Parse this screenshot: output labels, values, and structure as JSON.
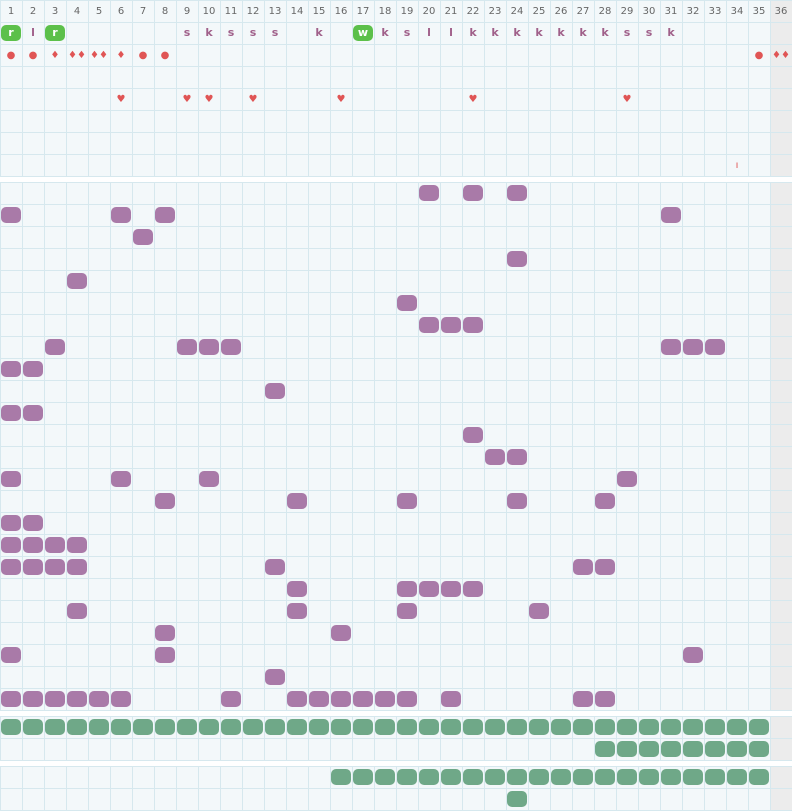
{
  "header": {
    "columns": [
      "1",
      "2",
      "3",
      "4",
      "5",
      "6",
      "7",
      "8",
      "9",
      "10",
      "11",
      "12",
      "13",
      "14",
      "15",
      "16",
      "17",
      "18",
      "19",
      "20",
      "21",
      "22",
      "23",
      "24",
      "25",
      "26",
      "27",
      "28",
      "29",
      "30",
      "31",
      "32",
      "33",
      "34",
      "35",
      "36"
    ]
  },
  "letters_row": [
    {
      "col": 1,
      "text": "r",
      "badge": true
    },
    {
      "col": 2,
      "text": "l"
    },
    {
      "col": 3,
      "text": "r",
      "badge": true
    },
    {
      "col": 9,
      "text": "s"
    },
    {
      "col": 10,
      "text": "k"
    },
    {
      "col": 11,
      "text": "s"
    },
    {
      "col": 12,
      "text": "s"
    },
    {
      "col": 13,
      "text": "s"
    },
    {
      "col": 15,
      "text": "k"
    },
    {
      "col": 17,
      "text": "w",
      "badge": true
    },
    {
      "col": 18,
      "text": "k"
    },
    {
      "col": 19,
      "text": "s"
    },
    {
      "col": 20,
      "text": "l"
    },
    {
      "col": 21,
      "text": "l"
    },
    {
      "col": 22,
      "text": "k"
    },
    {
      "col": 23,
      "text": "k"
    },
    {
      "col": 24,
      "text": "k"
    },
    {
      "col": 25,
      "text": "k"
    },
    {
      "col": 26,
      "text": "k"
    },
    {
      "col": 27,
      "text": "k"
    },
    {
      "col": 28,
      "text": "k"
    },
    {
      "col": 29,
      "text": "s"
    },
    {
      "col": 30,
      "text": "s"
    },
    {
      "col": 31,
      "text": "k"
    }
  ],
  "icons": [
    {
      "row": 1,
      "col": 1,
      "text": "●"
    },
    {
      "row": 1,
      "col": 2,
      "text": "●"
    },
    {
      "row": 1,
      "col": 3,
      "text": "♦"
    },
    {
      "row": 1,
      "col": 4,
      "text": "♦♦"
    },
    {
      "row": 1,
      "col": 5,
      "text": "♦♦"
    },
    {
      "row": 1,
      "col": 6,
      "text": "♦"
    },
    {
      "row": 1,
      "col": 7,
      "text": "●"
    },
    {
      "row": 1,
      "col": 8,
      "text": "●"
    },
    {
      "row": 1,
      "col": 35,
      "text": "●"
    },
    {
      "row": 1,
      "col": 36,
      "text": "♦♦"
    },
    {
      "row": 3,
      "col": 6,
      "text": "♥"
    },
    {
      "row": 3,
      "col": 9,
      "text": "♥"
    },
    {
      "row": 3,
      "col": 10,
      "text": "♥"
    },
    {
      "row": 3,
      "col": 12,
      "text": "♥"
    },
    {
      "row": 3,
      "col": 16,
      "text": "♥"
    },
    {
      "row": 3,
      "col": 22,
      "text": "♥"
    },
    {
      "row": 3,
      "col": 29,
      "text": "♥"
    },
    {
      "row": 6,
      "col": 34,
      "text": "ı"
    }
  ],
  "main_grid": [
    [
      20,
      22,
      24
    ],
    [
      1,
      6,
      8,
      31
    ],
    [
      7
    ],
    [
      24
    ],
    [
      4
    ],
    [
      19
    ],
    [
      20,
      21,
      22
    ],
    [
      3,
      9,
      10,
      11,
      31,
      32,
      33
    ],
    [
      1,
      2
    ],
    [
      13
    ],
    [
      1,
      2
    ],
    [
      22
    ],
    [
      23,
      24
    ],
    [
      1,
      6,
      10,
      29
    ],
    [
      8,
      14,
      19,
      24,
      28
    ],
    [
      1,
      2
    ],
    [
      1,
      2,
      3,
      4
    ],
    [
      1,
      2,
      3,
      4,
      13,
      27,
      28
    ],
    [
      14,
      19,
      20,
      21,
      22
    ],
    [
      4,
      14,
      19,
      25
    ],
    [
      8,
      16
    ],
    [
      1,
      8,
      32
    ],
    [
      13
    ],
    [
      1,
      2,
      3,
      4,
      5,
      6,
      11,
      14,
      15,
      16,
      17,
      18,
      19,
      21,
      27,
      28
    ]
  ],
  "green_grid_1": [
    [
      1,
      2,
      3,
      4,
      5,
      6,
      7,
      8,
      9,
      10,
      11,
      12,
      13,
      14,
      15,
      16,
      17,
      18,
      19,
      20,
      21,
      22,
      23,
      24,
      25,
      26,
      27,
      28,
      29,
      30,
      31,
      32,
      33,
      34,
      35
    ],
    [
      28,
      29,
      30,
      31,
      32,
      33,
      34,
      35
    ]
  ],
  "green_grid_2": [
    [
      16,
      17,
      18,
      19,
      20,
      21,
      22,
      23,
      24,
      25,
      26,
      27,
      28,
      29,
      30,
      31,
      32,
      33,
      34,
      35
    ],
    [
      24
    ]
  ]
}
